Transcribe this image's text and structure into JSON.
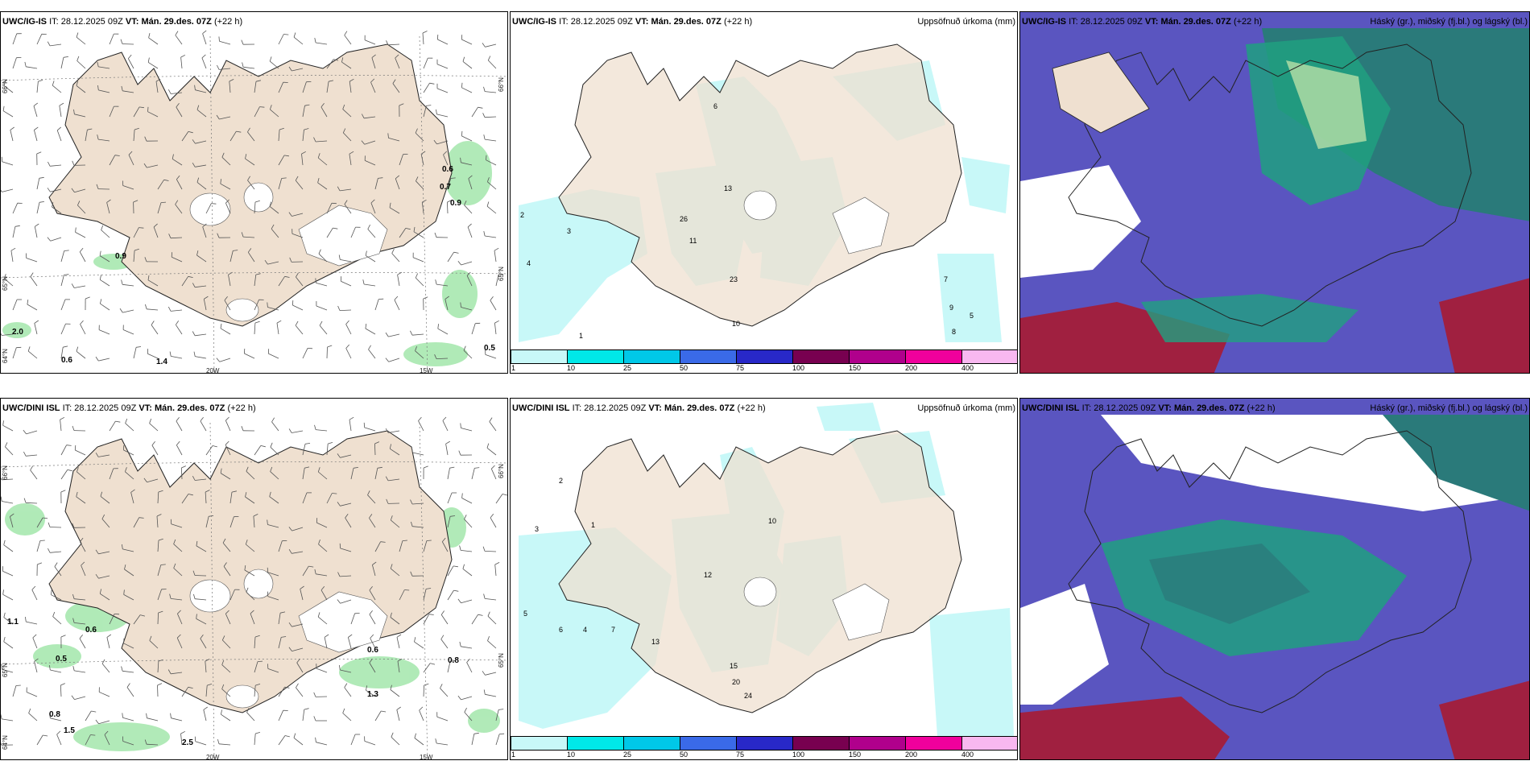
{
  "panels": [
    {
      "id": "top-left",
      "model": "UWC/IG-IS",
      "it_label": "IT:",
      "it_value": "28.12.2025 09Z",
      "vt_label": "VT:",
      "vt_value": "Mán. 29.des. 07Z",
      "lead": "(+22 h)",
      "right_title": "",
      "axis_labels": {
        "lat_left": [
          "66°N",
          "65°N",
          "64°N"
        ],
        "lat_right": [
          "66°N",
          "65°N"
        ],
        "lon_bottom": [
          "20W",
          "15W"
        ]
      },
      "values": [
        "0.9",
        "2.0",
        "0.6",
        "1.4",
        "0.5",
        "0.6",
        "0.7",
        "0.9"
      ]
    },
    {
      "id": "top-middle",
      "model": "UWC/IG-IS",
      "it_label": "IT:",
      "it_value": "28.12.2025 09Z",
      "vt_label": "VT:",
      "vt_value": "Mán. 29.des. 07Z",
      "lead": "(+22 h)",
      "right_title": "Uppsöfnuð úrkoma (mm)",
      "values": [
        "2",
        "3",
        "1",
        "4",
        "13",
        "11",
        "26",
        "23",
        "10",
        "6",
        "7",
        "9",
        "5",
        "8"
      ]
    },
    {
      "id": "top-right",
      "model": "UWC/IG-IS",
      "it_label": "IT:",
      "it_value": "28.12.2025 09Z",
      "vt_label": "VT:",
      "vt_value": "Mán. 29.des. 07Z",
      "lead": "(+22 h)",
      "right_title": "Háský (gr.), miðský (fj.bl.) og lágský (bl.)"
    },
    {
      "id": "bottom-left",
      "model": "UWC/DINI ISL",
      "it_label": "IT:",
      "it_value": "28.12.2025 09Z",
      "vt_label": "VT:",
      "vt_value": "Mán. 29.des. 07Z",
      "lead": "(+22 h)",
      "right_title": "",
      "axis_labels": {
        "lat_left": [
          "66°N",
          "65°N",
          "64°N"
        ],
        "lat_right": [
          "66°N",
          "65°N"
        ],
        "lon_bottom": [
          "20W",
          "15W"
        ]
      },
      "values": [
        "0.6",
        "1.1",
        "0.5",
        "0.8",
        "1.3",
        "2.5",
        "1.5",
        "0.6",
        "0.8"
      ]
    },
    {
      "id": "bottom-middle",
      "model": "UWC/DINI ISL",
      "it_label": "IT:",
      "it_value": "28.12.2025 09Z",
      "vt_label": "VT:",
      "vt_value": "Mán. 29.des. 07Z",
      "lead": "(+22 h)",
      "right_title": "Uppsöfnuð úrkoma (mm)",
      "values": [
        "2",
        "3",
        "1",
        "5",
        "6",
        "4",
        "7",
        "12",
        "13",
        "15",
        "20",
        "24",
        "10"
      ]
    },
    {
      "id": "bottom-right",
      "model": "UWC/DINI ISL",
      "it_label": "IT:",
      "it_value": "28.12.2025 09Z",
      "vt_label": "VT:",
      "vt_value": "Mán. 29.des. 07Z",
      "lead": "(+22 h)",
      "right_title": "Háský (gr.), miðský (fj.bl.) og lágský (bl.)"
    }
  ],
  "colorbar": {
    "ticks": [
      "1",
      "10",
      "25",
      "50",
      "75",
      "100",
      "150",
      "200",
      "400"
    ],
    "colors": [
      "#c8f8f8",
      "#00e8e8",
      "#00c8e8",
      "#3a6ae8",
      "#2828c8",
      "#780050",
      "#b0008c",
      "#f0009c",
      "#f8b8f0"
    ]
  },
  "colors": {
    "land": "#efe0d0",
    "sea": "#ffffff",
    "precip_light": "#c8f8f8",
    "cloud_low": "#5a55c0",
    "cloud_mid": "#20a080",
    "cloud_high": "#a02040",
    "green_light": "#a8e8b0"
  }
}
